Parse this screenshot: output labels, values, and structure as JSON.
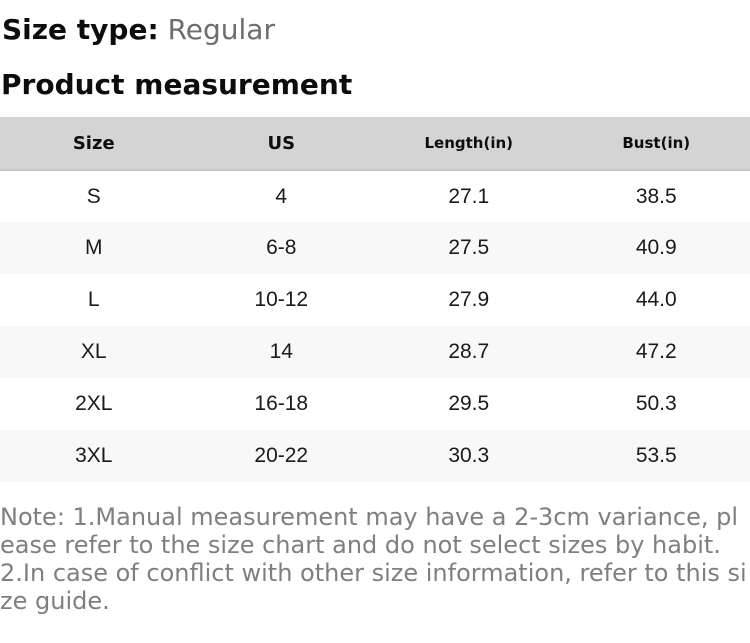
{
  "size_type": {
    "label": "Size type:",
    "value": "Regular"
  },
  "section_title": "Product measurement",
  "table": {
    "headers": [
      "Size",
      "US",
      "Length(in)",
      "Bust(in)"
    ],
    "rows": [
      [
        "S",
        "4",
        "27.1",
        "38.5"
      ],
      [
        "M",
        "6-8",
        "27.5",
        "40.9"
      ],
      [
        "L",
        "10-12",
        "27.9",
        "44.0"
      ],
      [
        "XL",
        "14",
        "28.7",
        "47.2"
      ],
      [
        "2XL",
        "16-18",
        "29.5",
        "50.3"
      ],
      [
        "3XL",
        "20-22",
        "30.3",
        "53.5"
      ]
    ]
  },
  "note": "Note: 1.Manual measurement may have a 2-3cm variance, please refer to the size chart and do not select sizes by habit. 2.In case of conflict with other size information, refer to this size guide.",
  "colors": {
    "header_bg": "#d4d4d4",
    "header_border": "#c6c6c6",
    "row_alt_bg": "#f8f8f8",
    "body_text": "#1a1a1a",
    "heading_text": "#0d0d0d",
    "muted_text": "#6d6d6d",
    "note_text": "#7f7f7f"
  }
}
